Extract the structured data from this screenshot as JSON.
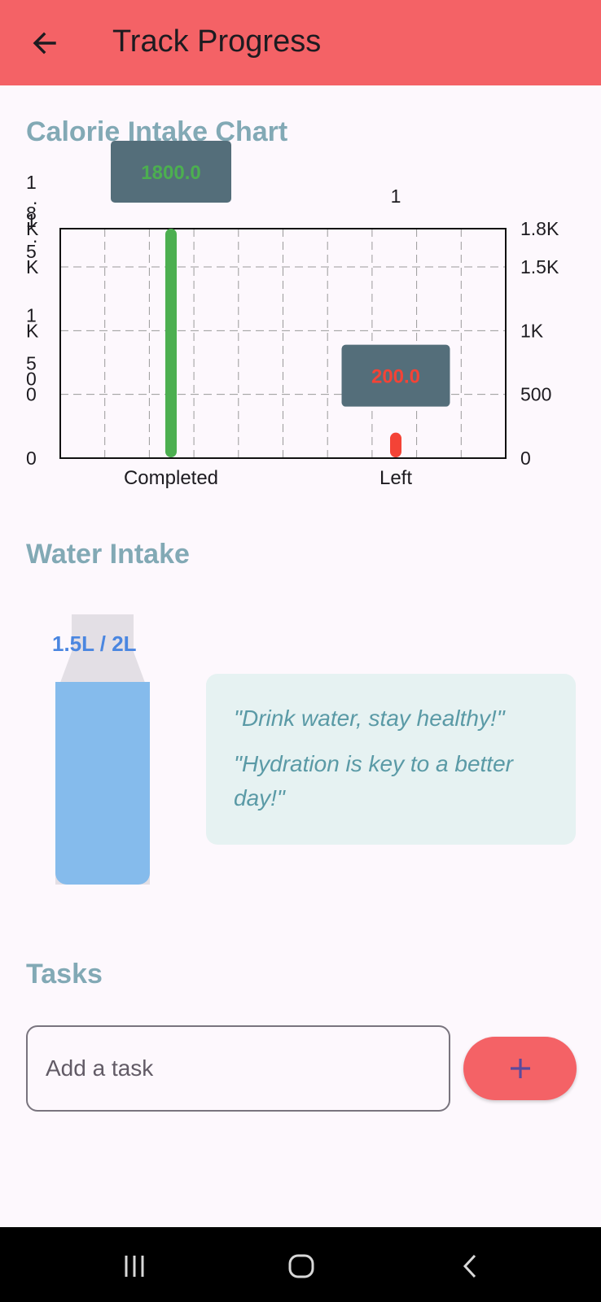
{
  "appbar": {
    "title": "Track Progress",
    "back_icon": "arrow-back-icon",
    "background": "#f46266"
  },
  "calorie_section": {
    "title": "Calorie Intake Chart"
  },
  "chart_data": {
    "type": "bar",
    "title": "Calorie Intake Chart",
    "categories": [
      "Completed",
      "Left"
    ],
    "values": [
      1800,
      200
    ],
    "colors": [
      "#4caf50",
      "#f44336"
    ],
    "tooltips": [
      "1800.0",
      "200.0"
    ],
    "ylim": [
      0,
      1800
    ],
    "right_axis_ticks": [
      "1.8K",
      "1.5K",
      "1K",
      "500",
      "0"
    ],
    "right_axis_tick_values": [
      1800,
      1500,
      1000,
      500,
      0
    ],
    "left_axis_ticks": [
      "1.8K",
      "1.5K",
      "1K",
      "500",
      "0"
    ],
    "top_axis_ticks": [
      "0",
      "1"
    ],
    "grid": true
  },
  "water_section": {
    "title": "Water Intake",
    "label": "1.5L / 2L",
    "consumed_liters": 1.5,
    "goal_liters": 2,
    "fill_fraction": 0.75,
    "quotes": [
      "\"Drink water, stay healthy!\"",
      "\"Hydration is key to a better day!\""
    ]
  },
  "tasks_section": {
    "title": "Tasks",
    "input_placeholder": "Add a task",
    "input_value": "",
    "add_icon": "plus-icon"
  },
  "navbar": {
    "recents_icon": "recents-icon",
    "home_icon": "home-icon",
    "back_icon": "nav-back-icon"
  }
}
